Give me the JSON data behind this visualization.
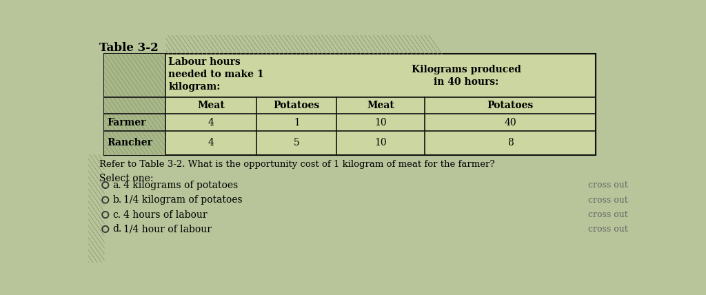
{
  "title": "Table 3-2",
  "bg_color": "#b8c49a",
  "table_bg": "#ccd6a0",
  "stripe_color": "#a8b888",
  "table_border_color": "#111111",
  "col1_header_line1": "Labour hours",
  "col1_header_line2": "needed to make 1",
  "col1_header_line3": "kilogram:",
  "col2_header_line1": "Kilograms produced",
  "col2_header_line2": "in 40 hours:",
  "sub_col1": "Meat",
  "sub_col2": "Potatoes",
  "sub_col3": "Meat",
  "sub_col4": "Potatoes",
  "row1_label": "Farmer",
  "row2_label": "Rancher",
  "row1_data": [
    "4",
    "1",
    "10",
    "40"
  ],
  "row2_data": [
    "4",
    "5",
    "10",
    "8"
  ],
  "question": "Refer to Table 3-2. What is the opportunity cost of 1 kilogram of meat for the farmer?",
  "select_one": "Select one:",
  "options": [
    {
      "letter": "a.",
      "text": "4 kilograms of potatoes"
    },
    {
      "letter": "b.",
      "text": "1/4 kilogram of potatoes"
    },
    {
      "letter": "c.",
      "text": "4 hours of labour"
    },
    {
      "letter": "d.",
      "text": "1/4 hour of labour"
    }
  ],
  "crossout_text": "cross out",
  "title_fontsize": 12,
  "table_fontsize": 10,
  "question_fontsize": 9.5,
  "option_fontsize": 10,
  "crossout_fontsize": 9
}
